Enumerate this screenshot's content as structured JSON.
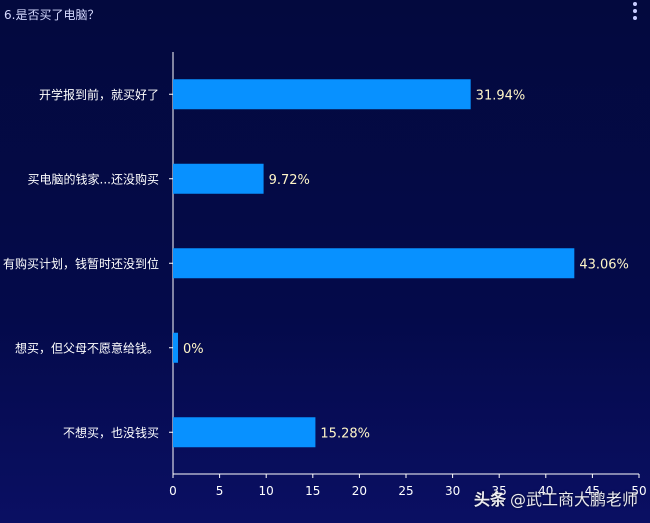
{
  "title": "6.是否买了电脑？",
  "menu": {
    "icon": "more-vertical-icon"
  },
  "colors": {
    "bar": "#0891ff",
    "label": "#fff6c8",
    "axis": "#ffffff",
    "background": "#040a4a"
  },
  "watermark": {
    "brand": "头条",
    "author": "@武工商大鹏老师"
  },
  "chart_data": {
    "type": "bar",
    "orientation": "horizontal",
    "title": "6.是否买了电脑？",
    "categories": [
      "开学报到前，就买好了",
      "买电脑的钱家...还没购买",
      "有购买计划，钱暂时还没到位",
      "想买，但父母不愿意给钱。",
      "不想买，也没钱买"
    ],
    "values": [
      31.94,
      9.72,
      43.06,
      0,
      15.28
    ],
    "value_labels": [
      "31.94%",
      "9.72%",
      "43.06%",
      "0%",
      "15.28%"
    ],
    "xlim": [
      0,
      50
    ],
    "xticks": [
      0,
      5,
      10,
      15,
      20,
      25,
      30,
      35,
      40,
      45,
      50
    ],
    "xlabel": "",
    "ylabel": "",
    "grid": false
  }
}
